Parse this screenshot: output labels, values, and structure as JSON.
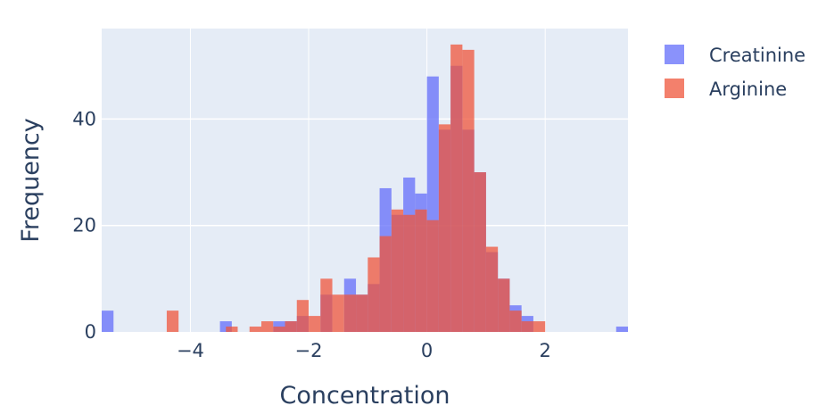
{
  "chart_data": {
    "type": "bar",
    "mode": "overlay-histogram",
    "xlabel": "Concentration",
    "ylabel": "Frequency",
    "xlim": [
      -5.5,
      3.4
    ],
    "ylim": [
      0,
      57
    ],
    "xticks": [
      -4,
      -2,
      0,
      2
    ],
    "yticks": [
      0,
      20,
      40
    ],
    "grid": true,
    "legend_position": "top-right",
    "bin_width": 0.2,
    "series": [
      {
        "name": "Creatinine",
        "color": "#636efa",
        "bins": [
          {
            "x0": -5.5,
            "count": 4
          },
          {
            "x0": -3.5,
            "count": 2
          },
          {
            "x0": -2.6,
            "count": 2
          },
          {
            "x0": -2.4,
            "count": 2
          },
          {
            "x0": -2.2,
            "count": 3
          },
          {
            "x0": -1.8,
            "count": 7
          },
          {
            "x0": -1.4,
            "count": 10
          },
          {
            "x0": -1.2,
            "count": 7
          },
          {
            "x0": -1.0,
            "count": 9
          },
          {
            "x0": -0.8,
            "count": 27
          },
          {
            "x0": -0.6,
            "count": 22
          },
          {
            "x0": -0.4,
            "count": 29
          },
          {
            "x0": -0.2,
            "count": 26
          },
          {
            "x0": 0.0,
            "count": 48
          },
          {
            "x0": 0.2,
            "count": 38
          },
          {
            "x0": 0.4,
            "count": 50
          },
          {
            "x0": 0.6,
            "count": 38
          },
          {
            "x0": 0.8,
            "count": 30
          },
          {
            "x0": 1.0,
            "count": 15
          },
          {
            "x0": 1.2,
            "count": 10
          },
          {
            "x0": 1.4,
            "count": 5
          },
          {
            "x0": 1.6,
            "count": 3
          },
          {
            "x0": 3.2,
            "count": 1
          }
        ]
      },
      {
        "name": "Arginine",
        "color": "#ef553b",
        "bins": [
          {
            "x0": -4.4,
            "count": 4
          },
          {
            "x0": -3.4,
            "count": 1
          },
          {
            "x0": -3.0,
            "count": 1
          },
          {
            "x0": -2.8,
            "count": 2
          },
          {
            "x0": -2.6,
            "count": 1
          },
          {
            "x0": -2.4,
            "count": 2
          },
          {
            "x0": -2.2,
            "count": 6
          },
          {
            "x0": -2.0,
            "count": 3
          },
          {
            "x0": -1.8,
            "count": 10
          },
          {
            "x0": -1.6,
            "count": 7
          },
          {
            "x0": -1.4,
            "count": 7
          },
          {
            "x0": -1.2,
            "count": 7
          },
          {
            "x0": -1.0,
            "count": 14
          },
          {
            "x0": -0.8,
            "count": 18
          },
          {
            "x0": -0.6,
            "count": 23
          },
          {
            "x0": -0.4,
            "count": 22
          },
          {
            "x0": -0.2,
            "count": 23
          },
          {
            "x0": 0.0,
            "count": 21
          },
          {
            "x0": 0.2,
            "count": 39
          },
          {
            "x0": 0.4,
            "count": 54
          },
          {
            "x0": 0.6,
            "count": 53
          },
          {
            "x0": 0.8,
            "count": 30
          },
          {
            "x0": 1.0,
            "count": 16
          },
          {
            "x0": 1.2,
            "count": 10
          },
          {
            "x0": 1.4,
            "count": 4
          },
          {
            "x0": 1.6,
            "count": 2
          },
          {
            "x0": 1.8,
            "count": 2
          }
        ]
      }
    ]
  }
}
